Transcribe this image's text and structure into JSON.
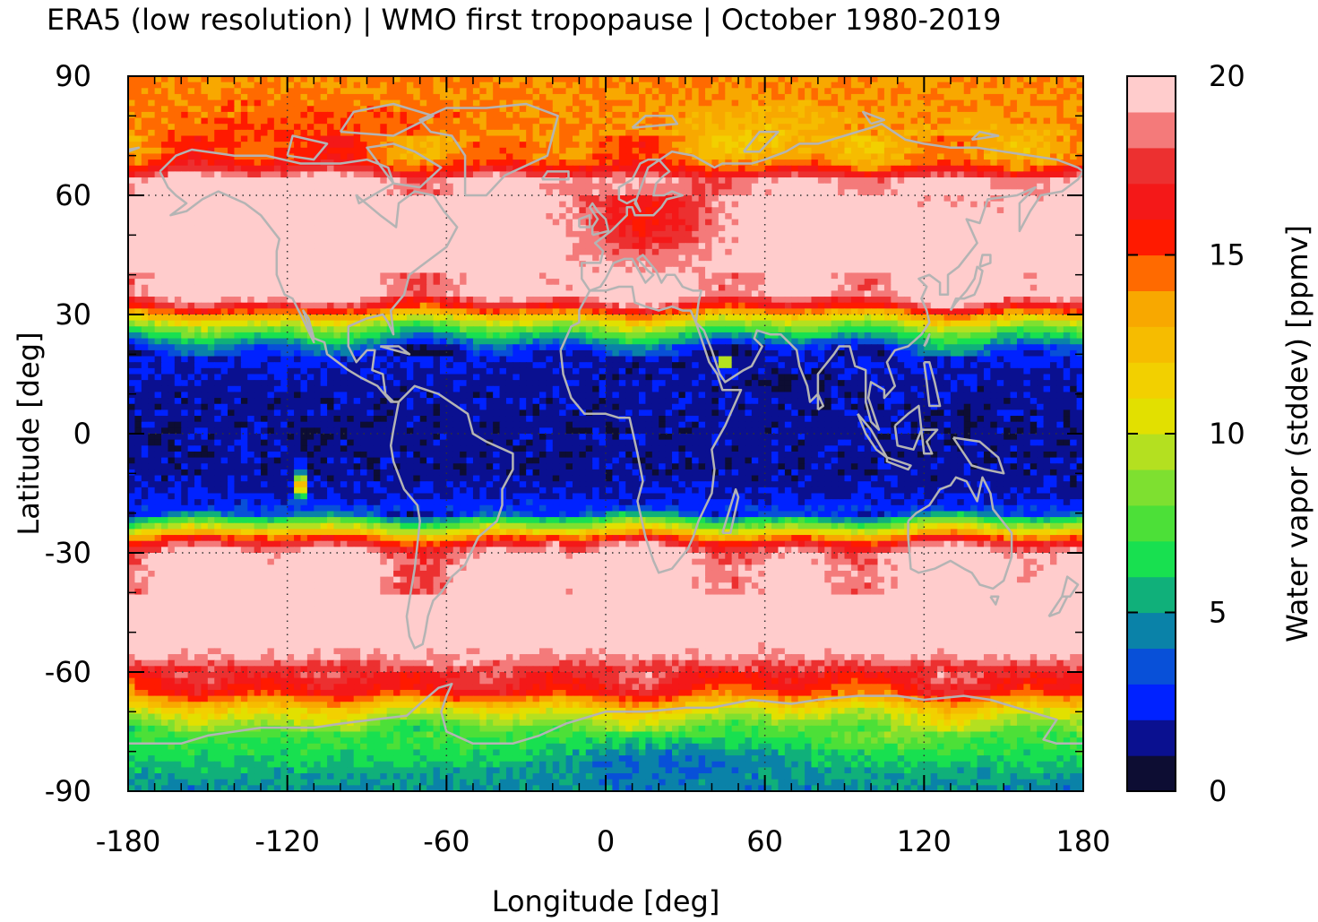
{
  "chart_data": {
    "type": "heatmap",
    "title": "ERA5 (low resolution) | WMO first tropopause | October 1980-2019",
    "xlabel": "Longitude [deg]",
    "ylabel": "Latitude [deg]",
    "xlim": [
      -180,
      180
    ],
    "ylim": [
      -90,
      90
    ],
    "x_ticks": [
      -180,
      -120,
      -60,
      0,
      60,
      120,
      180
    ],
    "y_ticks": [
      -90,
      -60,
      -30,
      0,
      30,
      60,
      90
    ],
    "x_tick_labels": [
      "-180",
      "-120",
      "-60",
      "0",
      "60",
      "120",
      "180"
    ],
    "y_tick_labels": [
      "-90",
      "-60",
      "-30",
      "0",
      "30",
      "60",
      "90"
    ],
    "grid": true,
    "grid_style": "dotted",
    "coastlines": true,
    "colorbar": {
      "label": "Water vapor (stddev) [ppmv]",
      "range": [
        0,
        20
      ],
      "ticks": [
        0,
        5,
        10,
        15,
        20
      ],
      "tick_labels": [
        "0",
        "5",
        "10",
        "15",
        "20"
      ],
      "levels": 20,
      "colors": [
        "#0d0d33",
        "#0a1090",
        "#0022ff",
        "#0850d8",
        "#0a82a8",
        "#10b07a",
        "#18e050",
        "#4ce038",
        "#7ee030",
        "#b4e020",
        "#e2e000",
        "#f2d000",
        "#f6bc00",
        "#f8a800",
        "#ff6a00",
        "#ff1a00",
        "#f41818",
        "#ec3030",
        "#f47a7a",
        "#ffcccc"
      ]
    },
    "zonal_profile": {
      "description": "Approximate zonal-mean water vapor stddev (ppmv) by latitude band",
      "lat": [
        -90,
        -85,
        -80,
        -75,
        -70,
        -65,
        -60,
        -55,
        -50,
        -45,
        -40,
        -35,
        -30,
        -27,
        -25,
        -22,
        -20,
        -15,
        -10,
        -5,
        0,
        5,
        10,
        15,
        20,
        22,
        25,
        28,
        30,
        32,
        35,
        40,
        50,
        60,
        64,
        66,
        68,
        70,
        75,
        80,
        85,
        90
      ],
      "value": [
        4.5,
        5.5,
        6.5,
        7.5,
        10.5,
        15.5,
        17.0,
        19.5,
        20,
        20,
        20,
        20,
        19.5,
        16,
        12,
        7,
        3,
        1.8,
        1.5,
        1.5,
        1.5,
        1.5,
        1.6,
        1.8,
        2.5,
        3.5,
        6.5,
        10,
        13,
        16.5,
        20,
        20,
        20,
        20,
        20,
        17,
        15.5,
        14.5,
        14,
        14,
        14,
        14
      ]
    }
  }
}
